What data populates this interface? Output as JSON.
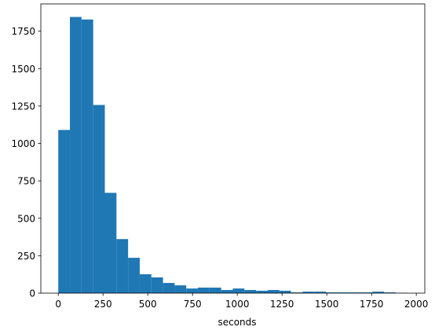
{
  "chart_data": {
    "type": "histogram",
    "xlabel": "seconds",
    "color": "#1f77b4",
    "bins": [
      0,
      65,
      130,
      195,
      260,
      325,
      390,
      455,
      520,
      585,
      650,
      715,
      780,
      845,
      910,
      975,
      1040,
      1105,
      1170,
      1235,
      1300,
      1365,
      1430,
      1495,
      1560,
      1625,
      1690,
      1755,
      1820,
      1885,
      1950
    ],
    "values": [
      1090,
      1845,
      1828,
      1257,
      670,
      361,
      236,
      126,
      105,
      68,
      52,
      31,
      37,
      37,
      21,
      31,
      21,
      16,
      21,
      16,
      5,
      10,
      10,
      5,
      5,
      5,
      5,
      10,
      5,
      2
    ],
    "xlim": [
      -97.5,
      2047.5
    ],
    "xticks": [
      0,
      250,
      500,
      750,
      1000,
      1250,
      1500,
      1750,
      2000
    ],
    "ylim": [
      0,
      1932
    ],
    "yticks": [
      0,
      250,
      500,
      750,
      1000,
      1250,
      1500,
      1750
    ]
  }
}
